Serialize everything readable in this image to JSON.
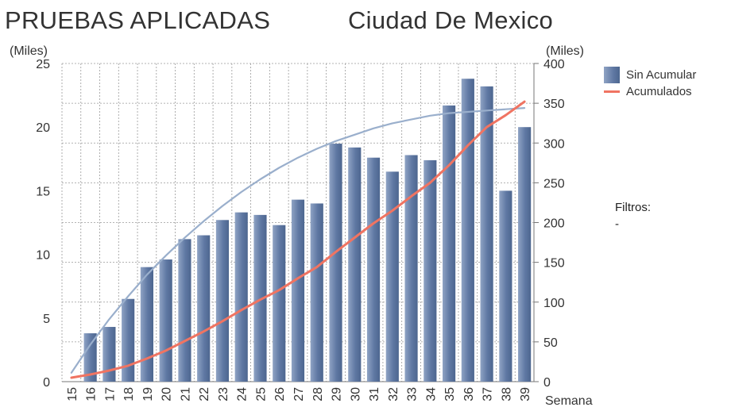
{
  "header": {
    "title": "PRUEBAS APLICADAS",
    "subtitle": "Ciudad De Mexico"
  },
  "chart_data": {
    "type": "bar",
    "title": "PRUEBAS APLICADAS",
    "subtitle": "Ciudad De Mexico",
    "xlabel": "Semana",
    "ylabel_left": "(Miles)",
    "ylabel_right": "(Miles)",
    "categories": [
      "15",
      "16",
      "17",
      "18",
      "19",
      "20",
      "21",
      "22",
      "23",
      "24",
      "25",
      "26",
      "27",
      "28",
      "29",
      "30",
      "31",
      "32",
      "33",
      "34",
      "35",
      "36",
      "37",
      "38",
      "39"
    ],
    "ylim_left": [
      0,
      25
    ],
    "yticks_left": [
      0,
      5,
      10,
      15,
      20,
      25
    ],
    "ylim_right": [
      0,
      400
    ],
    "yticks_right": [
      0,
      50,
      100,
      150,
      200,
      250,
      300,
      350,
      400
    ],
    "grid": true,
    "legend_position": "top-right",
    "series": [
      {
        "name": "Sin Acumular",
        "type": "bar",
        "axis": "left",
        "color": "#5f78a3",
        "values": [
          null,
          3.8,
          4.3,
          6.5,
          9.0,
          9.6,
          11.2,
          11.5,
          12.7,
          13.3,
          13.1,
          12.3,
          14.3,
          14.0,
          18.7,
          18.4,
          17.6,
          16.5,
          17.8,
          17.4,
          21.7,
          23.8,
          23.2,
          15.0,
          20.0
        ]
      },
      {
        "name": "Acumulados",
        "type": "line",
        "axis": "right",
        "color": "#f07462",
        "values": [
          5,
          9,
          14,
          20,
          29,
          39,
          51,
          63,
          76,
          90,
          103,
          115,
          130,
          144,
          163,
          181,
          199,
          215,
          233,
          250,
          272,
          297,
          320,
          335,
          352
        ]
      },
      {
        "type": "line",
        "axis": "left",
        "color": "#9aafcc",
        "values": [
          0.7,
          2.9,
          4.9,
          6.7,
          8.4,
          9.9,
          11.3,
          12.6,
          13.8,
          14.9,
          15.9,
          16.8,
          17.6,
          18.3,
          18.9,
          19.4,
          19.9,
          20.3,
          20.6,
          20.9,
          21.1,
          21.2,
          21.3,
          21.4,
          21.5
        ]
      }
    ]
  },
  "legend": {
    "bars_label": "Sin Acumular",
    "line_label": "Acumulados"
  },
  "filters": {
    "label": "Filtros:",
    "value": "-"
  },
  "colors": {
    "bar": "#5f78a3",
    "cumulative_line": "#f07462",
    "trend_line": "#9aafcc",
    "grid": "#9a9a9a"
  }
}
